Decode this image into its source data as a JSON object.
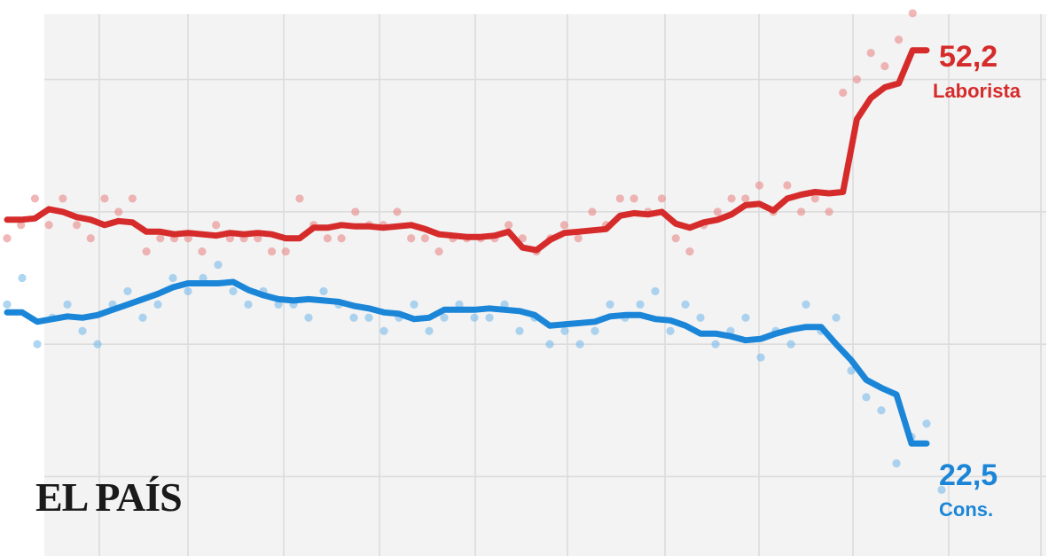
{
  "logo": "EL PAÍS",
  "chart_data": {
    "type": "line",
    "title": "",
    "xlabel": "",
    "ylabel": "",
    "ylim": [
      14,
      56
    ],
    "gridlines_y": [
      20,
      30,
      40,
      50
    ],
    "grid": true,
    "series": [
      {
        "name": "Laborista",
        "color": "#d62b2b",
        "end_value_label": "52,2",
        "end_label": "Laborista",
        "values": [
          39.4,
          39.4,
          39.5,
          40.2,
          40.0,
          39.6,
          39.4,
          39.0,
          39.3,
          39.2,
          38.5,
          38.5,
          38.3,
          38.4,
          38.3,
          38.2,
          38.4,
          38.3,
          38.4,
          38.3,
          38.0,
          38.0,
          38.8,
          38.8,
          39.0,
          38.9,
          38.9,
          38.8,
          38.9,
          39.0,
          38.7,
          38.3,
          38.2,
          38.1,
          38.1,
          38.2,
          38.5,
          37.3,
          37.1,
          37.9,
          38.4,
          38.5,
          38.6,
          38.7,
          39.7,
          39.9,
          39.8,
          40.0,
          39.1,
          38.8,
          39.2,
          39.4,
          39.8,
          40.5,
          40.6,
          40.1,
          41.0,
          41.3,
          41.5,
          41.4,
          41.5,
          47.0,
          48.6,
          49.4,
          49.7,
          52.2,
          52.2
        ]
      },
      {
        "name": "Cons.",
        "color": "#1b86d8",
        "end_value_label": "22,5",
        "end_label": "Cons.",
        "values": [
          32.4,
          32.4,
          31.7,
          31.9,
          32.1,
          32.0,
          32.2,
          32.6,
          33.0,
          33.4,
          33.8,
          34.3,
          34.6,
          34.6,
          34.6,
          34.7,
          34.1,
          33.7,
          33.4,
          33.3,
          33.4,
          33.3,
          33.2,
          32.9,
          32.7,
          32.4,
          32.3,
          31.9,
          32.0,
          32.6,
          32.6,
          32.6,
          32.7,
          32.6,
          32.5,
          32.2,
          31.4,
          31.5,
          31.6,
          31.7,
          32.1,
          32.2,
          32.2,
          31.9,
          31.8,
          31.4,
          30.8,
          30.8,
          30.6,
          30.3,
          30.4,
          30.8,
          31.1,
          31.3,
          31.3,
          30.0,
          28.8,
          27.3,
          26.7,
          26.2,
          22.5,
          22.5
        ]
      }
    ],
    "polls": {
      "Laborista": [
        [
          0,
          38
        ],
        [
          1,
          39
        ],
        [
          2,
          41
        ],
        [
          3,
          39
        ],
        [
          4,
          41
        ],
        [
          5,
          39
        ],
        [
          6,
          38
        ],
        [
          7,
          41
        ],
        [
          8,
          40
        ],
        [
          9,
          41
        ],
        [
          10,
          37
        ],
        [
          11,
          38
        ],
        [
          12,
          38
        ],
        [
          13,
          38
        ],
        [
          14,
          37
        ],
        [
          15,
          39
        ],
        [
          16,
          38
        ],
        [
          17,
          38
        ],
        [
          18,
          38
        ],
        [
          19,
          37
        ],
        [
          20,
          37
        ],
        [
          21,
          41
        ],
        [
          22,
          39
        ],
        [
          23,
          38
        ],
        [
          24,
          38
        ],
        [
          25,
          40
        ],
        [
          26,
          39
        ],
        [
          27,
          39
        ],
        [
          28,
          40
        ],
        [
          29,
          38
        ],
        [
          30,
          38
        ],
        [
          31,
          37
        ],
        [
          32,
          38
        ],
        [
          33,
          38
        ],
        [
          34,
          38
        ],
        [
          35,
          38
        ],
        [
          36,
          39
        ],
        [
          37,
          38
        ],
        [
          38,
          37
        ],
        [
          39,
          38
        ],
        [
          40,
          39
        ],
        [
          41,
          38
        ],
        [
          42,
          40
        ],
        [
          43,
          39
        ],
        [
          44,
          41
        ],
        [
          45,
          41
        ],
        [
          46,
          40
        ],
        [
          47,
          41
        ],
        [
          48,
          38
        ],
        [
          49,
          37
        ],
        [
          50,
          39
        ],
        [
          51,
          40
        ],
        [
          52,
          41
        ],
        [
          53,
          41
        ],
        [
          54,
          42
        ],
        [
          55,
          40
        ],
        [
          56,
          42
        ],
        [
          57,
          40
        ],
        [
          58,
          41
        ],
        [
          59,
          40
        ],
        [
          60,
          49
        ],
        [
          61,
          50
        ],
        [
          62,
          52
        ],
        [
          63,
          51
        ],
        [
          64,
          53
        ],
        [
          65,
          55
        ]
      ],
      "Cons.": [
        [
          0,
          33
        ],
        [
          1,
          35
        ],
        [
          2,
          30
        ],
        [
          3,
          32
        ],
        [
          4,
          33
        ],
        [
          5,
          31
        ],
        [
          6,
          30
        ],
        [
          7,
          33
        ],
        [
          8,
          34
        ],
        [
          9,
          32
        ],
        [
          10,
          33
        ],
        [
          11,
          35
        ],
        [
          12,
          34
        ],
        [
          13,
          35
        ],
        [
          14,
          36
        ],
        [
          15,
          34
        ],
        [
          16,
          33
        ],
        [
          17,
          34
        ],
        [
          18,
          33
        ],
        [
          19,
          33
        ],
        [
          20,
          32
        ],
        [
          21,
          34
        ],
        [
          22,
          33
        ],
        [
          23,
          32
        ],
        [
          24,
          32
        ],
        [
          25,
          31
        ],
        [
          26,
          32
        ],
        [
          27,
          33
        ],
        [
          28,
          31
        ],
        [
          29,
          32
        ],
        [
          30,
          33
        ],
        [
          31,
          32
        ],
        [
          32,
          32
        ],
        [
          33,
          33
        ],
        [
          34,
          31
        ],
        [
          35,
          32
        ],
        [
          36,
          30
        ],
        [
          37,
          31
        ],
        [
          38,
          30
        ],
        [
          39,
          31
        ],
        [
          40,
          33
        ],
        [
          41,
          32
        ],
        [
          42,
          33
        ],
        [
          43,
          34
        ],
        [
          44,
          31
        ],
        [
          45,
          33
        ],
        [
          46,
          32
        ],
        [
          47,
          30
        ],
        [
          48,
          31
        ],
        [
          49,
          32
        ],
        [
          50,
          29
        ],
        [
          51,
          31
        ],
        [
          52,
          30
        ],
        [
          53,
          33
        ],
        [
          54,
          31
        ],
        [
          55,
          32
        ],
        [
          56,
          28
        ],
        [
          57,
          26
        ],
        [
          58,
          25
        ],
        [
          59,
          21
        ],
        [
          60,
          23
        ],
        [
          61,
          24
        ],
        [
          62,
          19
        ]
      ]
    }
  }
}
